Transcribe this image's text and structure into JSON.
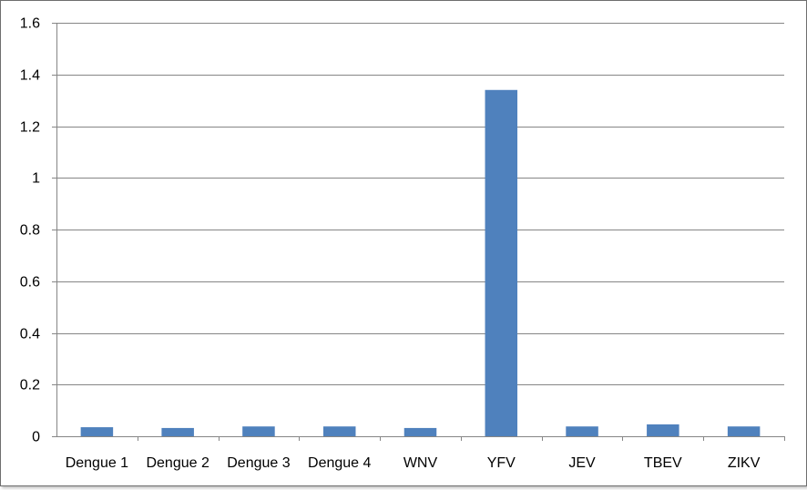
{
  "chart_data": {
    "type": "bar",
    "categories": [
      "Dengue 1",
      "Dengue 2",
      "Dengue 3",
      "Dengue 4",
      "WNV",
      "YFV",
      "JEV",
      "TBEV",
      "ZIKV"
    ],
    "values": [
      0.035,
      0.032,
      0.038,
      0.038,
      0.032,
      1.34,
      0.038,
      0.046,
      0.038
    ],
    "title": "",
    "xlabel": "",
    "ylabel": "",
    "ylim": [
      0,
      1.6
    ],
    "yticks": [
      0,
      0.2,
      0.4,
      0.6,
      0.8,
      1,
      1.2,
      1.4,
      1.6
    ],
    "ytick_labels": [
      "0",
      "0.2",
      "0.4",
      "0.6",
      "0.8",
      "1",
      "1.2",
      "1.4",
      "1.6"
    ],
    "grid": true,
    "legend": "none",
    "bar_color": "#4f81bd",
    "grid_color": "#868686"
  }
}
